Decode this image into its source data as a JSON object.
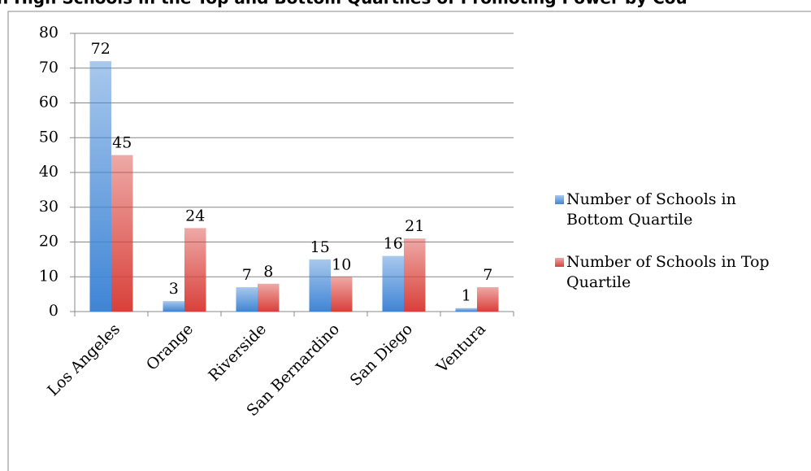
{
  "chart_data": {
    "type": "bar",
    "title": "h High Schools in the Top and Bottom Quartiles of Promoting Power by Cou",
    "categories": [
      "Los Angeles",
      "Orange",
      "Riverside",
      "San Bernardino",
      "San Diego",
      "Ventura"
    ],
    "series": [
      {
        "name": "Number of Schools in Bottom Quartile",
        "color": "#3f85d6",
        "values": [
          72,
          3,
          7,
          15,
          16,
          1
        ]
      },
      {
        "name": "Number of Schools in Top Quartile",
        "color": "#d9403a",
        "values": [
          45,
          24,
          8,
          10,
          21,
          7
        ]
      }
    ],
    "ylim": [
      0,
      80
    ],
    "yticks": [
      0,
      10,
      20,
      30,
      40,
      50,
      60,
      70,
      80
    ],
    "grid": true,
    "legend": "right"
  }
}
